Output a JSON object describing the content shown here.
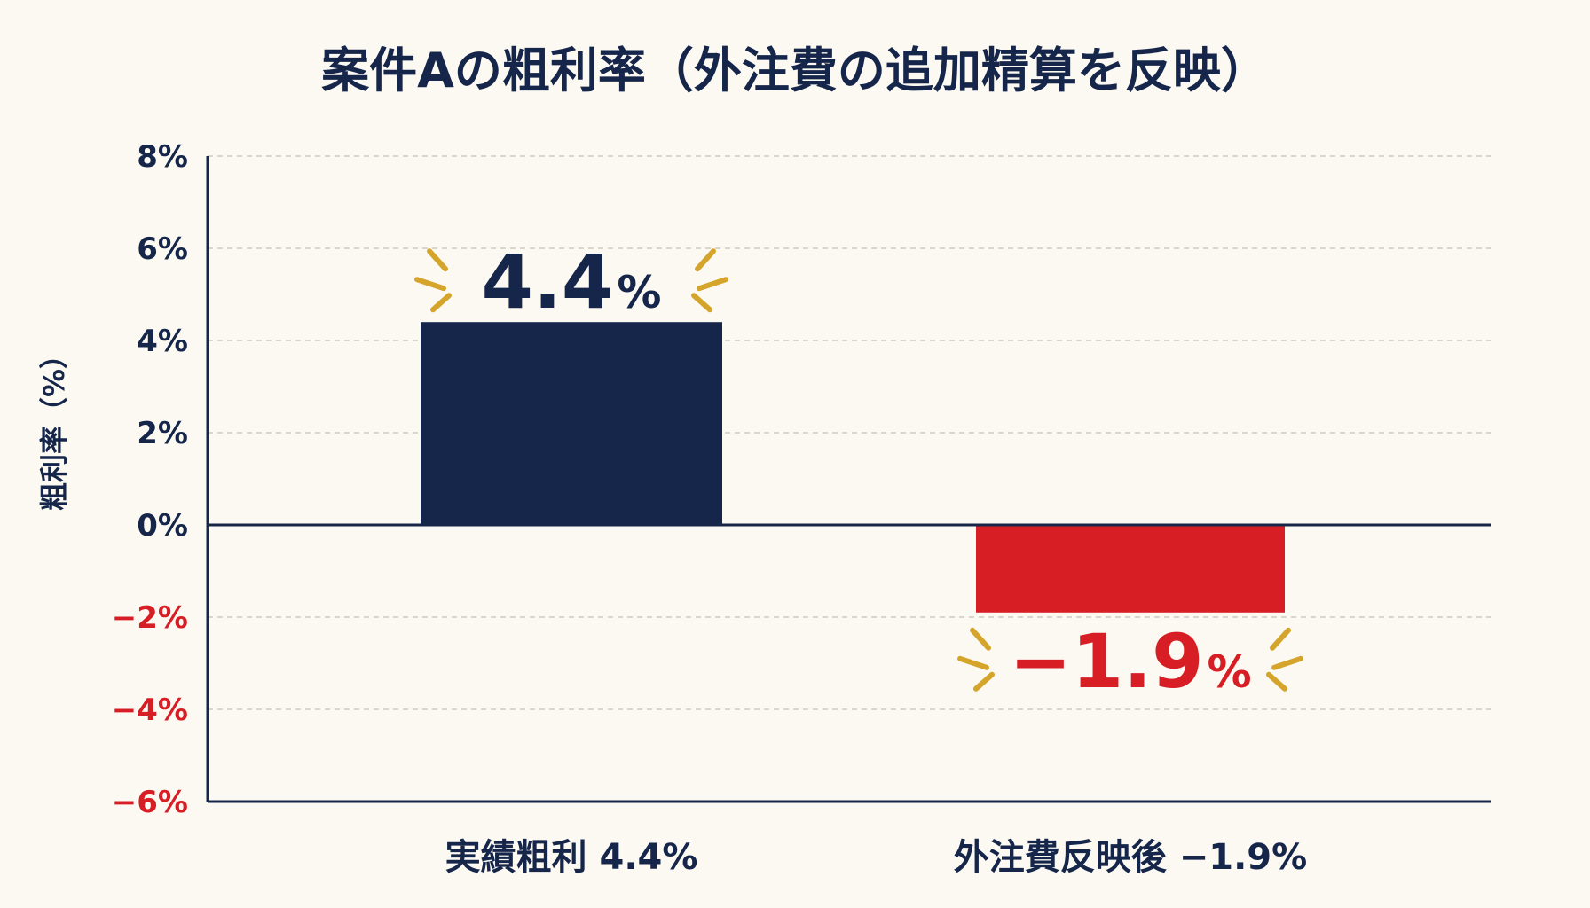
{
  "chart_data": {
    "type": "bar",
    "title": "案件Aの粗利率（外注費の追加精算を反映）",
    "ylabel": "粗利率（%）",
    "xlabel": "",
    "categories": [
      "実績粗利 4.4%",
      "外注費反映後 −1.9%"
    ],
    "values": [
      4.4,
      -1.9
    ],
    "data_labels": [
      {
        "number": "4.4",
        "unit": "%"
      },
      {
        "number": "−1.9",
        "unit": "%"
      }
    ],
    "ylim": [
      -6,
      8
    ],
    "yticks": [
      {
        "value": 8,
        "label": "8%"
      },
      {
        "value": 6,
        "label": "6%"
      },
      {
        "value": 4,
        "label": "4%"
      },
      {
        "value": 2,
        "label": "2%"
      },
      {
        "value": 0,
        "label": "0%"
      },
      {
        "value": -2,
        "label": "−2%"
      },
      {
        "value": -4,
        "label": "−4%"
      },
      {
        "value": -6,
        "label": "−6%"
      }
    ],
    "grid": true,
    "grid_style": "dashed",
    "legend": "none",
    "colors": {
      "positive_bar": "#15264a",
      "negative_bar": "#d81e25",
      "positive_text": "#15264a",
      "negative_text": "#d81e25",
      "accent_burst": "#d4a52a",
      "grid": "#cfcac0",
      "axis": "#15264a"
    }
  }
}
